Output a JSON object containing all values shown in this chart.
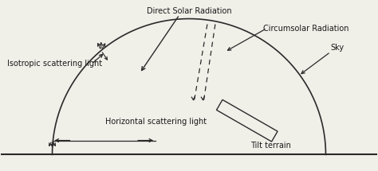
{
  "bg_color": "#f0efe8",
  "line_color": "#2a2a2a",
  "text_color": "#1a1a1a",
  "label_fontsize": 7.0,
  "labels": {
    "direct_solar": "Direct Solar Radiation",
    "circumsolar": "Circumsolar Radiation",
    "isotropic": "Isotropic scattering light",
    "horizontal": "Horizontal scattering light",
    "tilt_terrain": "Tilt terrain",
    "sky": "Sky"
  }
}
